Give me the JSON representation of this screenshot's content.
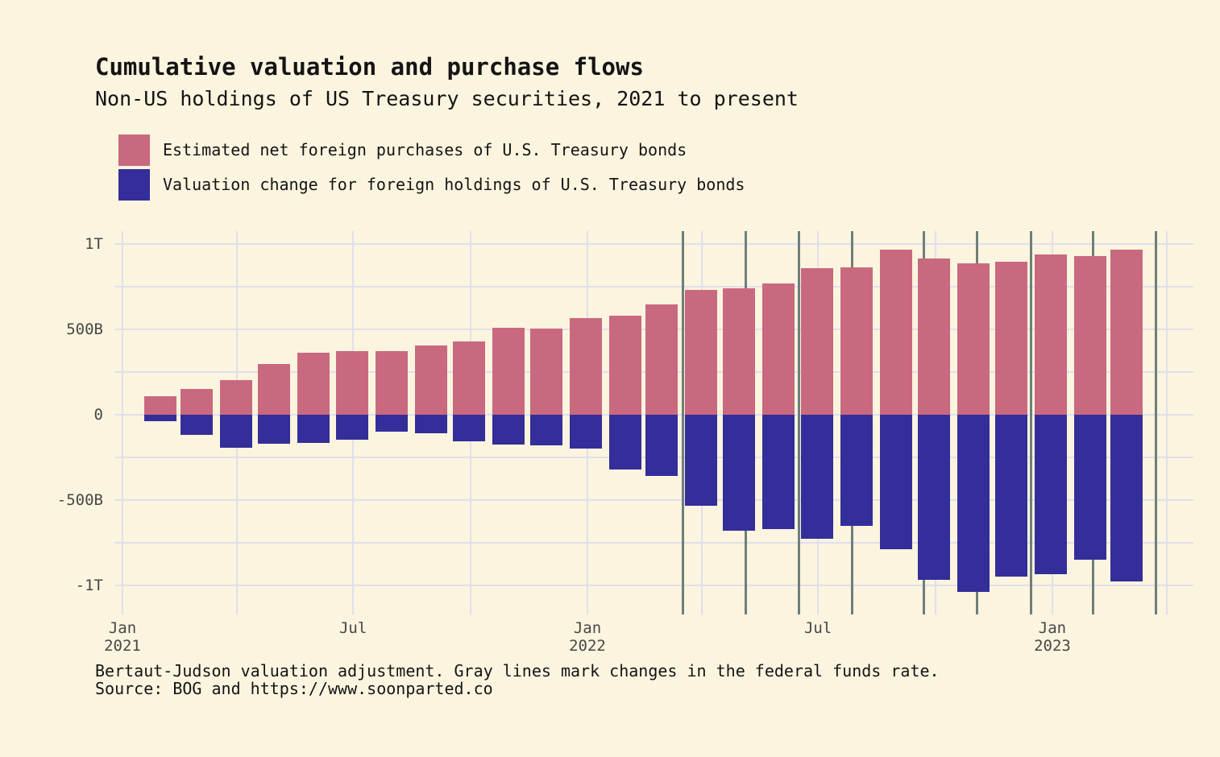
{
  "title": "Cumulative valuation and purchase flows",
  "subtitle": "Non-US holdings of US Treasury securities, 2021 to present",
  "legend": [
    {
      "label": "Estimated net foreign purchases of U.S. Treasury bonds"
    },
    {
      "label": "Valuation change for foreign holdings of U.S. Treasury bonds"
    }
  ],
  "caption_line1": "Bertaut-Judson valuation adjustment. Gray lines mark changes in the federal funds rate.",
  "caption_line2": "Source: BOG and https://www.soonparted.co",
  "chart_data": {
    "type": "bar",
    "stacked": true,
    "unit": "billions of USD",
    "title": "Cumulative valuation and purchase flows",
    "subtitle": "Non-US holdings of US Treasury securities, 2021 to present",
    "months": [
      "2021-01",
      "2021-02",
      "2021-03",
      "2021-04",
      "2021-05",
      "2021-06",
      "2021-07",
      "2021-08",
      "2021-09",
      "2021-10",
      "2021-11",
      "2021-12",
      "2022-01",
      "2022-02",
      "2022-03",
      "2022-04",
      "2022-05",
      "2022-06",
      "2022-07",
      "2022-08",
      "2022-09",
      "2022-10",
      "2022-11",
      "2022-12",
      "2023-01",
      "2023-02"
    ],
    "series": [
      {
        "name": "Estimated net foreign purchases of U.S. Treasury bonds",
        "color": "#c9697f",
        "values": [
          110,
          150,
          205,
          295,
          365,
          375,
          375,
          405,
          430,
          510,
          505,
          565,
          580,
          645,
          730,
          740,
          770,
          860,
          865,
          965,
          915,
          885,
          895,
          940,
          930,
          965
        ]
      },
      {
        "name": "Valuation change for foreign holdings of U.S. Treasury bonds",
        "color": "#332e99",
        "values": [
          -40,
          -120,
          -195,
          -170,
          -165,
          -145,
          -100,
          -110,
          -155,
          -175,
          -180,
          -200,
          -320,
          -360,
          -535,
          -680,
          -670,
          -725,
          -650,
          -790,
          -965,
          -1040,
          -950,
          -935,
          -850,
          -975
        ]
      }
    ],
    "y_axis": {
      "ticks": [
        {
          "value": 1000,
          "label": "1T"
        },
        {
          "value": 500,
          "label": "500B"
        },
        {
          "value": 0,
          "label": "0"
        },
        {
          "value": -500,
          "label": "-500B"
        },
        {
          "value": -1000,
          "label": "-1T"
        }
      ],
      "gridline_step": 250,
      "gridline_values": [
        1000,
        750,
        500,
        250,
        0,
        -250,
        -500,
        -750,
        -1000
      ]
    },
    "x_axis": {
      "domain": [
        "2021-01-01",
        "2023-04-21"
      ],
      "gridlines_quarterly": true,
      "ticks": [
        {
          "date": "2021-01-01",
          "line1": "Jan",
          "line2": "2021"
        },
        {
          "date": "2021-07-01",
          "line1": "Jul",
          "line2": ""
        },
        {
          "date": "2022-01-01",
          "line1": "Jan",
          "line2": "2022"
        },
        {
          "date": "2022-07-01",
          "line1": "Jul",
          "line2": ""
        },
        {
          "date": "2023-01-01",
          "line1": "Jan",
          "line2": "2023"
        }
      ]
    },
    "fed_rate_change_lines": [
      "2022-03-17",
      "2022-05-05",
      "2022-06-16",
      "2022-07-28",
      "2022-09-22",
      "2022-11-03",
      "2022-12-15",
      "2023-02-02",
      "2023-03-23"
    ],
    "colors": {
      "background": "#fbf4df",
      "purchases": "#c9697f",
      "valuation": "#332e99",
      "fed_line": "#6f7f7a",
      "gridline": "#e0dfec"
    },
    "legend_position": "top-left",
    "grid": true
  }
}
